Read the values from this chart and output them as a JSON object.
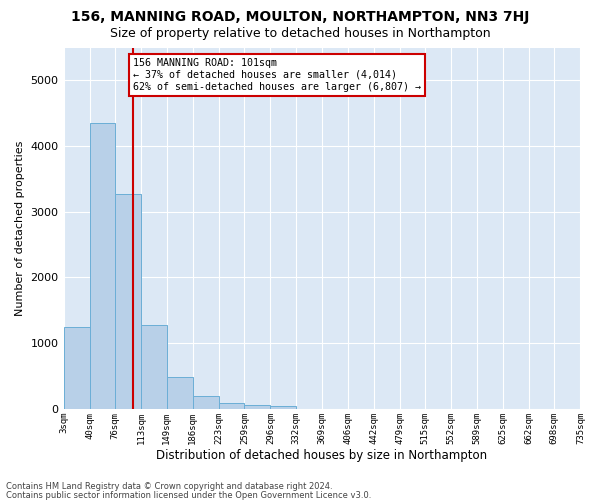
{
  "title": "156, MANNING ROAD, MOULTON, NORTHAMPTON, NN3 7HJ",
  "subtitle": "Size of property relative to detached houses in Northampton",
  "xlabel": "Distribution of detached houses by size in Northampton",
  "ylabel": "Number of detached properties",
  "footnote1": "Contains HM Land Registry data © Crown copyright and database right 2024.",
  "footnote2": "Contains public sector information licensed under the Open Government Licence v3.0.",
  "annotation_line1": "156 MANNING ROAD: 101sqm",
  "annotation_line2": "← 37% of detached houses are smaller (4,014)",
  "annotation_line3": "62% of semi-detached houses are larger (6,807) →",
  "vline_x": 101,
  "bar_edges": [
    3,
    40,
    76,
    113,
    149,
    186,
    223,
    259,
    296,
    332,
    369,
    406,
    442,
    479,
    515,
    552,
    589,
    625,
    662,
    698,
    735
  ],
  "bar_heights": [
    1250,
    4350,
    3270,
    1280,
    480,
    200,
    95,
    65,
    45,
    0,
    0,
    0,
    0,
    0,
    0,
    0,
    0,
    0,
    0,
    0
  ],
  "bar_color": "#b8d0e8",
  "bar_edge_color": "#6baed6",
  "vline_color": "#cc0000",
  "ylim": [
    0,
    5500
  ],
  "xlim": [
    3,
    735
  ],
  "tick_labels": [
    "3sqm",
    "40sqm",
    "76sqm",
    "113sqm",
    "149sqm",
    "186sqm",
    "223sqm",
    "259sqm",
    "296sqm",
    "332sqm",
    "369sqm",
    "406sqm",
    "442sqm",
    "479sqm",
    "515sqm",
    "552sqm",
    "589sqm",
    "625sqm",
    "662sqm",
    "698sqm",
    "735sqm"
  ],
  "tick_positions": [
    3,
    40,
    76,
    113,
    149,
    186,
    223,
    259,
    296,
    332,
    369,
    406,
    442,
    479,
    515,
    552,
    589,
    625,
    662,
    698,
    735
  ],
  "fig_bg_color": "#ffffff",
  "plot_bg_color": "#dce8f5",
  "title_fontsize": 10,
  "subtitle_fontsize": 9
}
